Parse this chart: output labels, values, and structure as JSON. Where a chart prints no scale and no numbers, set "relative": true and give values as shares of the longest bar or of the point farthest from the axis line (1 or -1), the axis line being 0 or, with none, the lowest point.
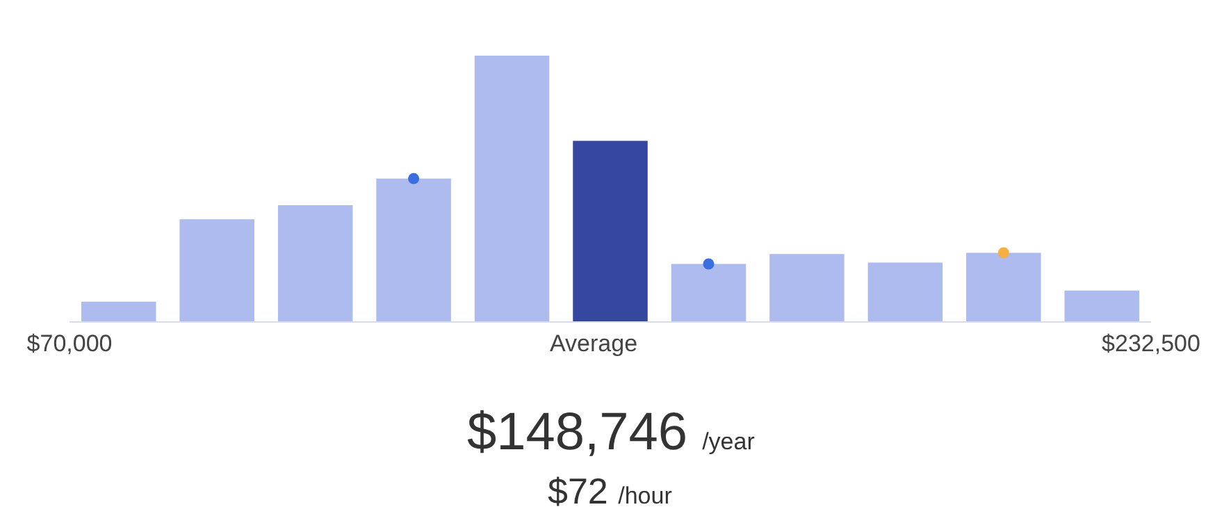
{
  "chart_data": {
    "type": "bar",
    "relative": true,
    "x": [
      77386,
      92159,
      106932,
      121705,
      136477,
      151250,
      166023,
      180795,
      195568,
      210341,
      225114
    ],
    "values": [
      0.074,
      0.384,
      0.437,
      0.537,
      1,
      0.679,
      0.216,
      0.253,
      0.221,
      0.258,
      0.116
    ],
    "colors": [
      "#aebbee",
      "#aebbee",
      "#aebbee",
      "#aebbee",
      "#aebbee",
      "#3647a0",
      "#aebbee",
      "#aebbee",
      "#aebbee",
      "#aebbee",
      "#aebbee"
    ],
    "xlim": [
      70000,
      232500
    ],
    "xticks": [
      {
        "value": 70000,
        "label": "$70,000"
      },
      {
        "value": 148746,
        "label": "Average"
      },
      {
        "value": 232500,
        "label": "$232,500"
      }
    ],
    "series": [
      {
        "type": "scatter",
        "color": "#3b6fe0",
        "marker": "circle",
        "x": [
          121705,
          166023
        ],
        "values": [
          0.537,
          0.216
        ]
      },
      {
        "type": "scatter",
        "color": "#f5b041",
        "marker": "circle",
        "x": [
          210341
        ],
        "values": [
          0.258
        ]
      }
    ],
    "annotations": [
      "$148,746 /year",
      "$72 /hour"
    ],
    "legend": false
  }
}
